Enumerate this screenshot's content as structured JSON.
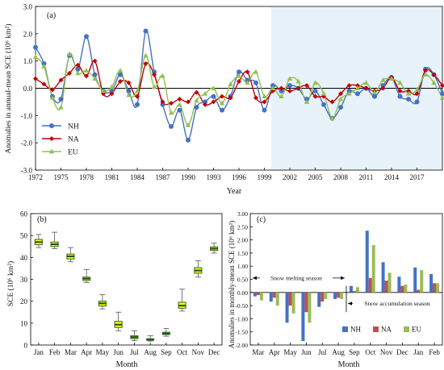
{
  "chart_data": [
    {
      "type": "line",
      "panel_label": "(a)",
      "xlabel": "Year",
      "ylabel": "Anomalies in annual-mean SCE (10⁶ km²)",
      "xlim": [
        1972,
        2020
      ],
      "ylim": [
        -3.0,
        3.0
      ],
      "x_ticks": [
        1972,
        1975,
        1978,
        1981,
        1984,
        1987,
        1990,
        1993,
        1996,
        1999,
        2002,
        2005,
        2008,
        2011,
        2014,
        2017
      ],
      "y_ticks": [
        -3.0,
        -2.0,
        -1.0,
        0.0,
        1.0,
        2.0,
        3.0
      ],
      "y_tick_labels": [
        "-3.0",
        "-2.0",
        "-1.0",
        "0.0",
        "1.0",
        "2.0",
        "3.0"
      ],
      "shaded_from_year": 1999.8,
      "legend": "bottom-left",
      "x": [
        1972,
        1973,
        1974,
        1975,
        1976,
        1977,
        1978,
        1979,
        1980,
        1981,
        1982,
        1983,
        1984,
        1985,
        1986,
        1987,
        1988,
        1989,
        1990,
        1991,
        1992,
        1993,
        1994,
        1995,
        1996,
        1997,
        1998,
        1999,
        2000,
        2001,
        2002,
        2003,
        2004,
        2005,
        2006,
        2007,
        2008,
        2009,
        2010,
        2011,
        2012,
        2013,
        2014,
        2015,
        2016,
        2017,
        2018,
        2019,
        2020
      ],
      "series": [
        {
          "name": "NH",
          "color": "#4472c4",
          "marker": "circle",
          "values": [
            1.5,
            0.9,
            -0.3,
            -0.4,
            1.2,
            0.7,
            1.9,
            0.5,
            -0.1,
            -0.1,
            0.5,
            -0.1,
            -0.6,
            2.1,
            0.6,
            -0.6,
            -1.4,
            -0.8,
            -1.9,
            -0.7,
            -0.5,
            -0.3,
            -0.8,
            -0.3,
            0.6,
            0.3,
            0.2,
            -0.8,
            0.1,
            -0.1,
            0.1,
            0.0,
            -0.4,
            -0.1,
            -0.6,
            -1.1,
            -0.7,
            -0.1,
            -0.2,
            0.0,
            -0.3,
            0.1,
            0.4,
            -0.3,
            -0.4,
            -0.5,
            0.7,
            0.5,
            -0.2
          ]
        },
        {
          "name": "NA",
          "color": "#c00000",
          "marker": "diamond",
          "values": [
            0.35,
            0.15,
            -0.05,
            0.3,
            0.55,
            0.85,
            0.45,
            1.0,
            -0.2,
            -0.2,
            0.25,
            0.2,
            -0.3,
            0.9,
            0.5,
            -0.5,
            -0.55,
            -0.4,
            -0.5,
            -0.15,
            -0.6,
            -0.5,
            -0.3,
            -0.35,
            0.25,
            0.6,
            -0.35,
            -0.5,
            -0.1,
            0.0,
            -0.1,
            0.0,
            0.1,
            -0.3,
            -0.3,
            -0.5,
            -0.2,
            0.1,
            0.1,
            0.0,
            -0.1,
            0.0,
            0.4,
            -0.1,
            -0.1,
            -0.2,
            0.65,
            0.5,
            0.1
          ]
        },
        {
          "name": "EU",
          "color": "#92c050",
          "marker": "triangle",
          "values": [
            1.15,
            0.8,
            -0.35,
            -0.7,
            1.25,
            0.55,
            0.65,
            0.35,
            -0.1,
            0.05,
            0.65,
            -0.25,
            -0.1,
            1.2,
            0.05,
            0.45,
            -0.9,
            -0.6,
            -1.35,
            -0.45,
            -0.2,
            0.0,
            -0.55,
            0.15,
            0.45,
            0.2,
            0.6,
            -0.3,
            0.0,
            -0.3,
            0.35,
            0.25,
            -0.5,
            0.2,
            -0.2,
            -1.1,
            -0.4,
            -0.2,
            0.0,
            0.2,
            -0.15,
            0.3,
            0.35,
            0.2,
            -0.2,
            -0.05,
            0.5,
            0.2,
            -0.35
          ]
        }
      ]
    },
    {
      "type": "box",
      "panel_label": "(b)",
      "xlabel": "Month",
      "ylabel": "SCE (10⁶ km²)",
      "ylim": [
        0,
        60
      ],
      "y_ticks": [
        0,
        10,
        20,
        30,
        40,
        50,
        60
      ],
      "categories": [
        "Jan",
        "Feb",
        "Mar",
        "Apr",
        "May",
        "Jun",
        "Jul",
        "Aug",
        "Sep",
        "Oct",
        "Nov",
        "Dec"
      ],
      "box_fill": "#ffff00",
      "box_edge": "#4a7c3a",
      "median_color": "#1a4f1a",
      "boxes": [
        {
          "min": 44.5,
          "q1": 45.8,
          "median": 47.0,
          "q3": 48.2,
          "max": 50.5
        },
        {
          "min": 44.0,
          "q1": 45.0,
          "median": 46.0,
          "q3": 47.0,
          "max": 51.5
        },
        {
          "min": 38.0,
          "q1": 39.3,
          "median": 40.5,
          "q3": 41.5,
          "max": 44.5
        },
        {
          "min": 28.5,
          "q1": 29.5,
          "median": 30.3,
          "q3": 31.0,
          "max": 34.5
        },
        {
          "min": 16.5,
          "q1": 17.8,
          "median": 19.0,
          "q3": 20.0,
          "max": 23.0
        },
        {
          "min": 6.5,
          "q1": 8.0,
          "median": 9.3,
          "q3": 10.8,
          "max": 15.0
        },
        {
          "min": 2.0,
          "q1": 2.9,
          "median": 3.6,
          "q3": 4.2,
          "max": 6.5
        },
        {
          "min": 1.8,
          "q1": 2.2,
          "median": 2.5,
          "q3": 2.8,
          "max": 4.2
        },
        {
          "min": 4.0,
          "q1": 4.8,
          "median": 5.3,
          "q3": 5.8,
          "max": 7.5
        },
        {
          "min": 15.5,
          "q1": 16.8,
          "median": 18.0,
          "q3": 19.5,
          "max": 25.5
        },
        {
          "min": 31.0,
          "q1": 32.8,
          "median": 34.0,
          "q3": 35.3,
          "max": 38.5
        },
        {
          "min": 42.0,
          "q1": 43.2,
          "median": 44.0,
          "q3": 44.8,
          "max": 46.5
        }
      ]
    },
    {
      "type": "bar",
      "panel_label": "(c)",
      "xlabel": "Month",
      "ylabel": "Anomalies in monthly-mean SCE (10⁶ km²)",
      "ylim": [
        -2.0,
        3.0
      ],
      "y_ticks": [
        -2.0,
        -1.5,
        -1.0,
        -0.5,
        0.0,
        0.5,
        1.0,
        1.5,
        2.0,
        2.5,
        3.0
      ],
      "y_tick_labels": [
        "-2.00",
        "-1.50",
        "-1.00",
        "-0.50",
        "0.00",
        "0.50",
        "1.00",
        "1.50",
        "2.00",
        "2.50",
        "3.00"
      ],
      "categories": [
        "Mar",
        "Apr",
        "May",
        "Jun",
        "Jul",
        "Aug",
        "Sep",
        "Oct",
        "Nov",
        "Dec",
        "Jan",
        "Feb"
      ],
      "annotation_melting": "Snow melting season",
      "annotation_accumulation": "Snow accumulation season",
      "legend": "bottom-right",
      "series": [
        {
          "name": "NH",
          "color": "#4472c4",
          "values": [
            -0.15,
            -0.35,
            -1.15,
            -1.85,
            -0.55,
            -0.25,
            0.25,
            2.35,
            1.15,
            0.6,
            0.95,
            0.7
          ]
        },
        {
          "name": "NA",
          "color": "#c0504d",
          "values": [
            -0.1,
            -0.2,
            -0.5,
            -0.75,
            -0.35,
            -0.2,
            0.05,
            0.55,
            0.45,
            0.25,
            0.1,
            0.35
          ]
        },
        {
          "name": "EU",
          "color": "#9bbb59",
          "values": [
            -0.3,
            -0.5,
            -0.8,
            -1.15,
            -0.25,
            -0.25,
            0.2,
            1.8,
            0.75,
            0.3,
            0.85,
            0.35
          ]
        }
      ]
    }
  ]
}
